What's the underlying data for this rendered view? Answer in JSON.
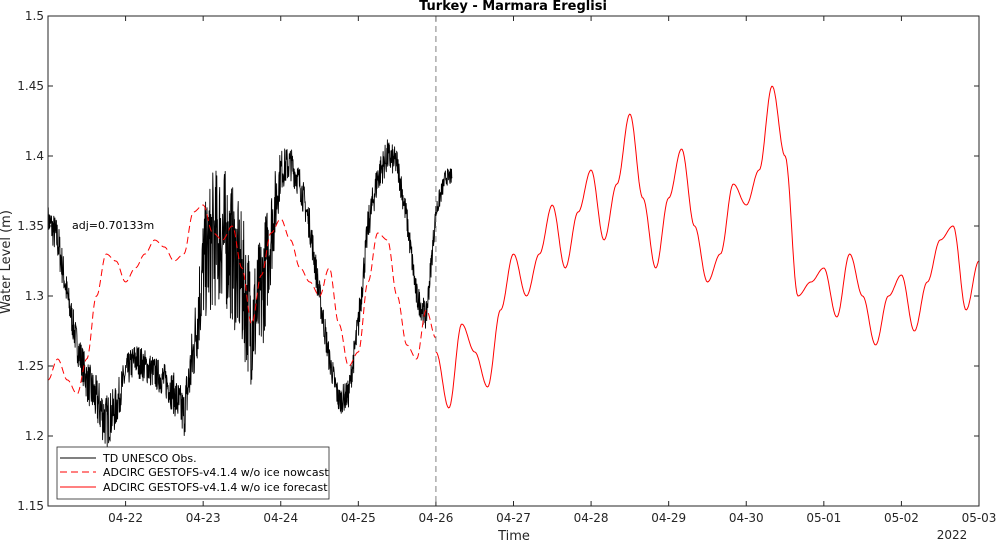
{
  "chart_data": {
    "type": "line",
    "title": "Turkey - Marmara Ereglisi",
    "xlabel": "Time",
    "ylabel": "Water Level (m)",
    "year_label": "2022",
    "annotation": "adj=0.70133m",
    "xlim": [
      "2022-04-21T00:00",
      "2022-05-03T00:00"
    ],
    "ylim": [
      1.15,
      1.5
    ],
    "x_ticks": [
      "04-22",
      "04-23",
      "04-24",
      "04-25",
      "04-26",
      "04-27",
      "04-28",
      "04-29",
      "04-30",
      "05-01",
      "05-02",
      "05-03"
    ],
    "y_ticks": [
      1.15,
      1.2,
      1.25,
      1.3,
      1.35,
      1.4,
      1.45,
      1.5
    ],
    "grid": false,
    "legend_position": "bottom-left",
    "vline": "2022-04-26T00:00",
    "colors": {
      "obs": "#000000",
      "nowcast": "#ff0000",
      "forecast": "#ff0000",
      "vline": "#808080"
    },
    "series": [
      {
        "name": "TD UNESCO Obs.",
        "style": "solid",
        "x": [
          "2022-04-21T00:00",
          "2022-04-21T03:00",
          "2022-04-21T06:00",
          "2022-04-21T09:00",
          "2022-04-21T12:00",
          "2022-04-21T15:00",
          "2022-04-21T18:00",
          "2022-04-21T21:00",
          "2022-04-22T00:00",
          "2022-04-22T03:00",
          "2022-04-22T06:00",
          "2022-04-22T09:00",
          "2022-04-22T12:00",
          "2022-04-22T15:00",
          "2022-04-22T18:00",
          "2022-04-22T21:00",
          "2022-04-23T00:00",
          "2022-04-23T03:00",
          "2022-04-23T06:00",
          "2022-04-23T09:00",
          "2022-04-23T12:00",
          "2022-04-23T15:00",
          "2022-04-23T18:00",
          "2022-04-23T21:00",
          "2022-04-24T00:00",
          "2022-04-24T03:00",
          "2022-04-24T06:00",
          "2022-04-24T09:00",
          "2022-04-24T12:00",
          "2022-04-24T15:00",
          "2022-04-24T18:00",
          "2022-04-24T21:00",
          "2022-04-25T00:00",
          "2022-04-25T03:00",
          "2022-04-25T06:00",
          "2022-04-25T09:00",
          "2022-04-25T12:00",
          "2022-04-25T15:00",
          "2022-04-25T18:00",
          "2022-04-25T21:00",
          "2022-04-26T00:00",
          "2022-04-26T03:00",
          "2022-04-26T05:00"
        ],
        "y": [
          1.355,
          1.34,
          1.3,
          1.265,
          1.24,
          1.225,
          1.21,
          1.22,
          1.245,
          1.255,
          1.25,
          1.245,
          1.24,
          1.23,
          1.215,
          1.26,
          1.32,
          1.34,
          1.345,
          1.33,
          1.31,
          1.28,
          1.3,
          1.345,
          1.39,
          1.395,
          1.38,
          1.35,
          1.3,
          1.255,
          1.225,
          1.23,
          1.28,
          1.35,
          1.385,
          1.4,
          1.395,
          1.355,
          1.3,
          1.285,
          1.36,
          1.385,
          1.385
        ],
        "amp": [
          0.01,
          0.015,
          0.012,
          0.012,
          0.015,
          0.018,
          0.02,
          0.015,
          0.012,
          0.012,
          0.012,
          0.012,
          0.012,
          0.015,
          0.018,
          0.025,
          0.04,
          0.05,
          0.05,
          0.05,
          0.05,
          0.045,
          0.045,
          0.035,
          0.015,
          0.012,
          0.012,
          0.012,
          0.012,
          0.01,
          0.01,
          0.01,
          0.012,
          0.012,
          0.012,
          0.012,
          0.01,
          0.01,
          0.01,
          0.01,
          0.008,
          0.006,
          0.006
        ]
      },
      {
        "name": "ADCIRC GESTOFS-v4.1.4 w/o ice nowcast",
        "style": "dashed",
        "x": [
          "2022-04-21T00:00",
          "2022-04-21T03:00",
          "2022-04-21T06:00",
          "2022-04-21T09:00",
          "2022-04-21T12:00",
          "2022-04-21T15:00",
          "2022-04-21T18:00",
          "2022-04-21T21:00",
          "2022-04-22T00:00",
          "2022-04-22T03:00",
          "2022-04-22T06:00",
          "2022-04-22T09:00",
          "2022-04-22T12:00",
          "2022-04-22T15:00",
          "2022-04-22T18:00",
          "2022-04-22T21:00",
          "2022-04-23T00:00",
          "2022-04-23T03:00",
          "2022-04-23T06:00",
          "2022-04-23T09:00",
          "2022-04-23T12:00",
          "2022-04-23T15:00",
          "2022-04-23T18:00",
          "2022-04-23T21:00",
          "2022-04-24T00:00",
          "2022-04-24T03:00",
          "2022-04-24T06:00",
          "2022-04-24T09:00",
          "2022-04-24T12:00",
          "2022-04-24T15:00",
          "2022-04-24T18:00",
          "2022-04-24T21:00",
          "2022-04-25T00:00",
          "2022-04-25T03:00",
          "2022-04-25T06:00",
          "2022-04-25T09:00",
          "2022-04-25T12:00",
          "2022-04-25T15:00",
          "2022-04-25T18:00",
          "2022-04-25T21:00",
          "2022-04-26T00:00"
        ],
        "y": [
          1.24,
          1.255,
          1.24,
          1.23,
          1.255,
          1.3,
          1.33,
          1.325,
          1.31,
          1.32,
          1.33,
          1.34,
          1.335,
          1.325,
          1.33,
          1.36,
          1.365,
          1.345,
          1.34,
          1.35,
          1.32,
          1.28,
          1.315,
          1.345,
          1.355,
          1.34,
          1.32,
          1.31,
          1.3,
          1.32,
          1.28,
          1.25,
          1.26,
          1.31,
          1.345,
          1.34,
          1.3,
          1.265,
          1.255,
          1.29,
          1.27
        ]
      },
      {
        "name": "ADCIRC GESTOFS-v4.1.4 w/o ice forecast",
        "style": "solid",
        "x": [
          "2022-04-26T00:00",
          "2022-04-26T04:00",
          "2022-04-26T08:00",
          "2022-04-26T12:00",
          "2022-04-26T16:00",
          "2022-04-26T20:00",
          "2022-04-27T00:00",
          "2022-04-27T04:00",
          "2022-04-27T08:00",
          "2022-04-27T12:00",
          "2022-04-27T16:00",
          "2022-04-27T20:00",
          "2022-04-28T00:00",
          "2022-04-28T04:00",
          "2022-04-28T08:00",
          "2022-04-28T12:00",
          "2022-04-28T16:00",
          "2022-04-28T20:00",
          "2022-04-29T00:00",
          "2022-04-29T04:00",
          "2022-04-29T08:00",
          "2022-04-29T12:00",
          "2022-04-29T16:00",
          "2022-04-29T20:00",
          "2022-04-30T00:00",
          "2022-04-30T04:00",
          "2022-04-30T08:00",
          "2022-04-30T12:00",
          "2022-04-30T16:00",
          "2022-04-30T20:00",
          "2022-05-01T00:00",
          "2022-05-01T04:00",
          "2022-05-01T08:00",
          "2022-05-01T12:00",
          "2022-05-01T16:00",
          "2022-05-01T20:00",
          "2022-05-02T00:00",
          "2022-05-02T04:00",
          "2022-05-02T08:00",
          "2022-05-02T12:00",
          "2022-05-02T16:00",
          "2022-05-02T20:00",
          "2022-05-03T00:00"
        ],
        "y": [
          1.26,
          1.22,
          1.28,
          1.26,
          1.235,
          1.29,
          1.33,
          1.3,
          1.33,
          1.365,
          1.32,
          1.36,
          1.39,
          1.34,
          1.38,
          1.43,
          1.37,
          1.32,
          1.37,
          1.405,
          1.35,
          1.31,
          1.33,
          1.38,
          1.365,
          1.39,
          1.45,
          1.4,
          1.3,
          1.31,
          1.32,
          1.285,
          1.33,
          1.3,
          1.265,
          1.3,
          1.315,
          1.275,
          1.31,
          1.34,
          1.35,
          1.29,
          1.325
        ]
      }
    ]
  }
}
